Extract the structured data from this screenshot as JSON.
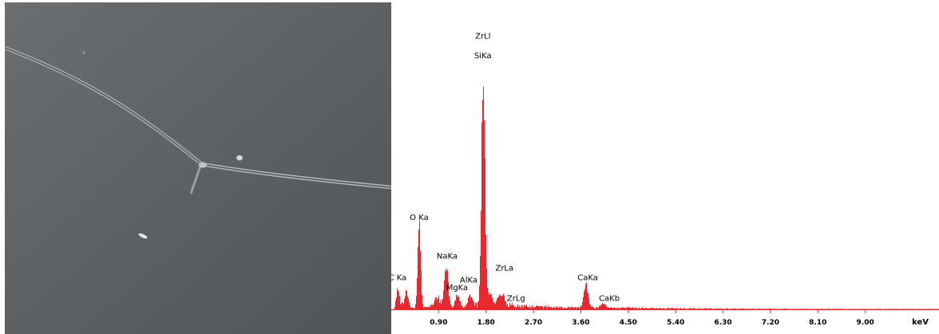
{
  "chart_data": {
    "type": "area",
    "title": "",
    "xlabel": "keV",
    "ylabel": "",
    "xlim": [
      0,
      10.4
    ],
    "ylim": [
      0,
      100
    ],
    "colors": {
      "spectrum": "#e8282f",
      "axis": "#e8282f",
      "text": "#000000"
    },
    "x_ticks": [
      {
        "value": 0.9,
        "label": "0.90"
      },
      {
        "value": 1.8,
        "label": "1.80"
      },
      {
        "value": 2.7,
        "label": "2.70"
      },
      {
        "value": 3.6,
        "label": "3.60"
      },
      {
        "value": 4.5,
        "label": "4.50"
      },
      {
        "value": 5.4,
        "label": "5.40"
      },
      {
        "value": 6.3,
        "label": "6.30"
      },
      {
        "value": 7.2,
        "label": "7.20"
      },
      {
        "value": 8.1,
        "label": "8.10"
      },
      {
        "value": 9.0,
        "label": "9.00"
      }
    ],
    "peaks": [
      {
        "x": 0.12,
        "y": 8,
        "w": 0.025
      },
      {
        "x": 0.28,
        "y": 6,
        "w": 0.03
      },
      {
        "x": 0.525,
        "y": 33,
        "w": 0.028
      },
      {
        "x": 0.87,
        "y": 3,
        "w": 0.05
      },
      {
        "x": 1.04,
        "y": 17,
        "w": 0.035
      },
      {
        "x": 1.25,
        "y": 6,
        "w": 0.04
      },
      {
        "x": 1.49,
        "y": 4,
        "w": 0.04
      },
      {
        "x": 1.74,
        "y": 100,
        "w": 0.032
      },
      {
        "x": 1.87,
        "y": 6,
        "w": 0.05
      },
      {
        "x": 2.04,
        "y": 5,
        "w": 0.04
      },
      {
        "x": 2.12,
        "y": 4,
        "w": 0.03
      },
      {
        "x": 3.69,
        "y": 9,
        "w": 0.04
      },
      {
        "x": 4.01,
        "y": 2,
        "w": 0.04
      }
    ],
    "annotations": [
      {
        "label": "ZrLl",
        "x": 1.74,
        "y": 112
      },
      {
        "label": "SiKa",
        "x": 1.74,
        "y": 104
      },
      {
        "label": "O Ka",
        "x": 0.53,
        "y": 37
      },
      {
        "label": "NaKa",
        "x": 1.06,
        "y": 21
      },
      {
        "label": "C Ka",
        "x": 0.12,
        "y": 12
      },
      {
        "label": "AlKa",
        "x": 1.47,
        "y": 11
      },
      {
        "label": "MgKa",
        "x": 1.25,
        "y": 8
      },
      {
        "label": "ZrLa",
        "x": 2.15,
        "y": 16
      },
      {
        "label": "ZrLg",
        "x": 2.37,
        "y": 3.5
      },
      {
        "label": "CaKa",
        "x": 3.73,
        "y": 12
      },
      {
        "label": "CaKb",
        "x": 4.14,
        "y": 3.5
      }
    ]
  }
}
